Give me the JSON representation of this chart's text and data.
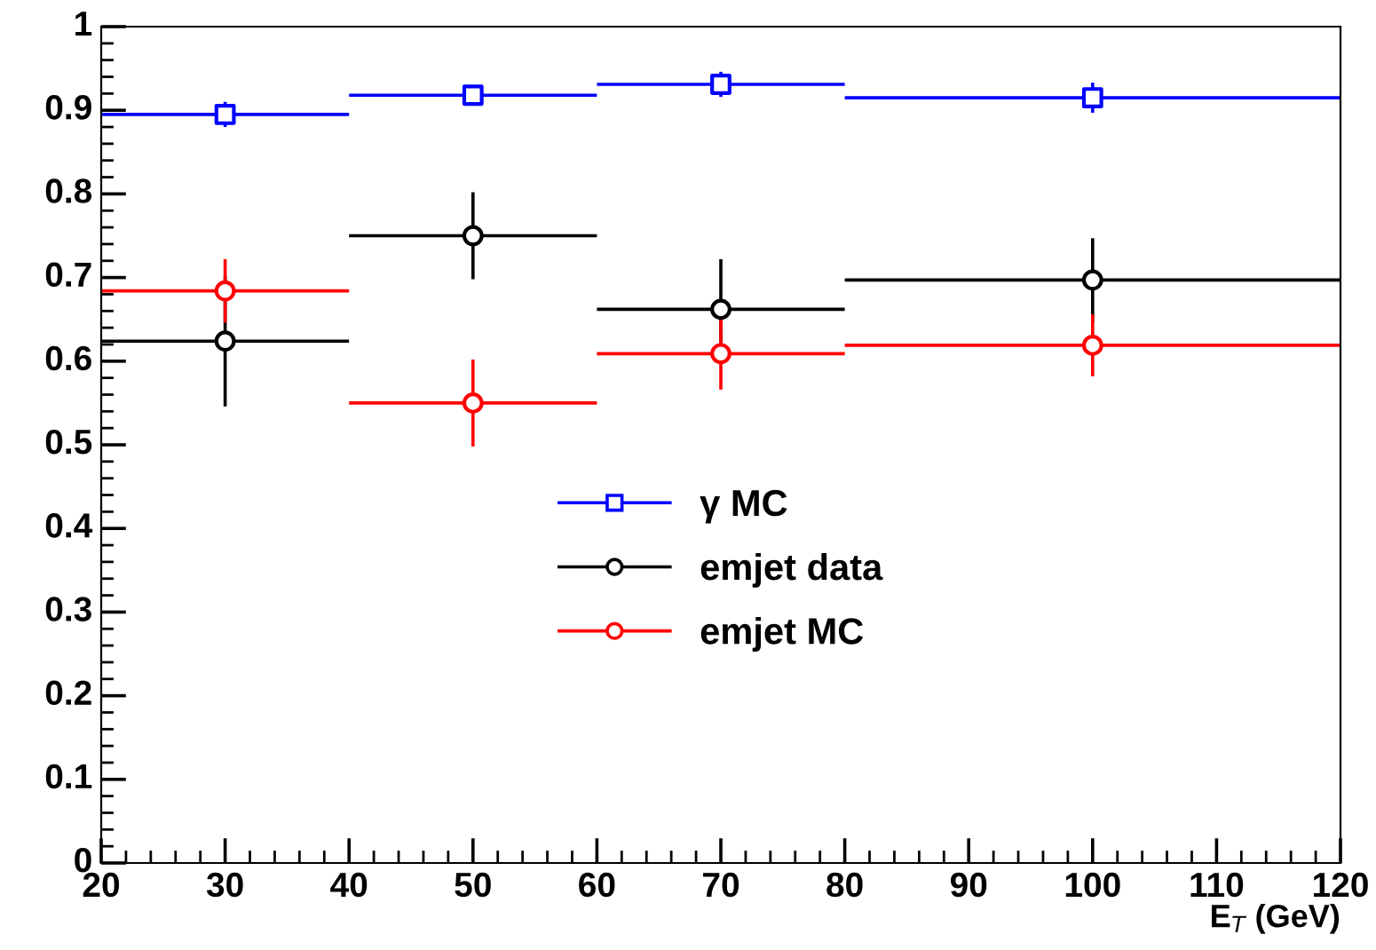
{
  "chart_data": {
    "type": "scatter",
    "xlabel": "E$_{T}$ (GeV)",
    "x": [
      30,
      50,
      70,
      100
    ],
    "series": [
      {
        "name": "γ MC",
        "color": "#0000ff",
        "marker": "square",
        "values": [
          0.895,
          0.918,
          0.931,
          0.915
        ],
        "errors": [
          0.015,
          0.01,
          0.015,
          0.018
        ],
        "xerrors": [
          10,
          10,
          10,
          20
        ]
      },
      {
        "name": "emjet data",
        "color": "#000000",
        "marker": "circle",
        "values": [
          0.624,
          0.75,
          0.662,
          0.697
        ],
        "errors": [
          0.078,
          0.052,
          0.06,
          0.05
        ],
        "xerrors": [
          10,
          10,
          10,
          20
        ]
      },
      {
        "name": "emjet MC",
        "color": "#ff0000",
        "marker": "circle",
        "values": [
          0.684,
          0.55,
          0.609,
          0.619
        ],
        "errors": [
          0.038,
          0.052,
          0.043,
          0.037
        ],
        "xerrors": [
          10,
          10,
          10,
          20
        ]
      }
    ],
    "xlim": [
      20,
      120
    ],
    "xticks": [
      20,
      30,
      40,
      50,
      60,
      70,
      80,
      90,
      100,
      110,
      120
    ],
    "ylim": [
      0,
      1
    ],
    "yticks": [
      0,
      0.1,
      0.2,
      0.3,
      0.4,
      0.5,
      0.6,
      0.7,
      0.8,
      0.9,
      1
    ],
    "grid": false,
    "legend": "center"
  }
}
